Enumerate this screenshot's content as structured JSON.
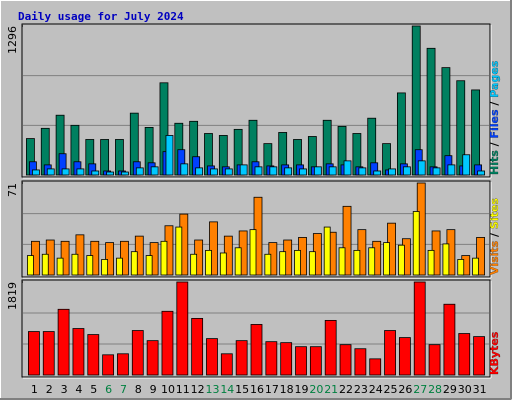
{
  "title": "Daily usage for July 2024",
  "categories": [
    "1",
    "2",
    "3",
    "4",
    "5",
    "6",
    "7",
    "8",
    "9",
    "10",
    "11",
    "12",
    "13",
    "14",
    "15",
    "16",
    "17",
    "18",
    "19",
    "20",
    "21",
    "22",
    "23",
    "24",
    "25",
    "26",
    "27",
    "28",
    "29",
    "30",
    "31"
  ],
  "weekend": [
    false,
    false,
    false,
    false,
    false,
    true,
    true,
    false,
    false,
    false,
    false,
    false,
    true,
    true,
    false,
    false,
    false,
    false,
    false,
    true,
    true,
    false,
    false,
    false,
    false,
    false,
    true,
    true,
    false,
    false,
    false
  ],
  "weekend_label_color": "#008040",
  "label_color": "#000000",
  "chart_data": [
    {
      "type": "bar",
      "ylim": [
        0,
        1296
      ],
      "yticks": [
        1296
      ],
      "ygrid": [
        432,
        864
      ],
      "series": [
        {
          "name": "Hits",
          "color": "#008060",
          "values": [
            317,
            406,
            520,
            432,
            309,
            309,
            309,
            538,
            414,
            802,
            450,
            467,
            361,
            344,
            397,
            476,
            273,
            370,
            309,
            335,
            476,
            423,
            361,
            494,
            273,
            714,
            1296,
            1102,
            934,
            820,
            740
          ]
        },
        {
          "name": "Files",
          "color": "#0040ff",
          "values": [
            115,
            88,
            185,
            115,
            97,
            35,
            35,
            115,
            106,
            203,
            220,
            159,
            79,
            71,
            88,
            115,
            79,
            88,
            88,
            71,
            97,
            88,
            71,
            106,
            44,
            97,
            220,
            71,
            168,
            79,
            88
          ]
        },
        {
          "name": "Pages",
          "color": "#00c8ff",
          "values": [
            44,
            53,
            53,
            53,
            35,
            26,
            26,
            62,
            71,
            344,
            97,
            62,
            53,
            53,
            88,
            71,
            71,
            62,
            53,
            71,
            71,
            123,
            62,
            35,
            53,
            71,
            123,
            62,
            88,
            176,
            35
          ]
        }
      ]
    },
    {
      "type": "bar",
      "ylim": [
        0,
        71
      ],
      "yticks": [
        71
      ],
      "ygrid": [
        23.67,
        47.33
      ],
      "series": [
        {
          "name": "Visits",
          "color": "#ff8000",
          "values": [
            26,
            27,
            26,
            31,
            26,
            25,
            26,
            30,
            25,
            38,
            47,
            27,
            41,
            30,
            34,
            60,
            25,
            27,
            29,
            32,
            33,
            53,
            35,
            26,
            40,
            28,
            71,
            34,
            35,
            15,
            29
          ]
        },
        {
          "name": "Sites",
          "color": "#ffff00",
          "values": [
            15,
            16,
            13,
            16,
            15,
            12,
            13,
            18,
            15,
            26,
            37,
            16,
            19,
            17,
            21,
            35,
            16,
            18,
            19,
            18,
            37,
            21,
            19,
            21,
            25,
            23,
            49,
            19,
            24,
            12,
            13
          ]
        }
      ]
    },
    {
      "type": "bar",
      "ylim": [
        0,
        1819
      ],
      "yticks": [
        1819
      ],
      "ygrid": [
        606.33,
        1212.67
      ],
      "series": [
        {
          "name": "KBytes",
          "color": "#ff0000",
          "values": [
            850,
            850,
            1285,
            909,
            791,
            395,
            415,
            870,
            672,
            1246,
            1819,
            1107,
            712,
            415,
            672,
            989,
            652,
            633,
            554,
            554,
            1068,
            593,
            514,
            316,
            870,
            732,
            1819,
            593,
            1384,
            811,
            751
          ]
        }
      ]
    }
  ]
}
